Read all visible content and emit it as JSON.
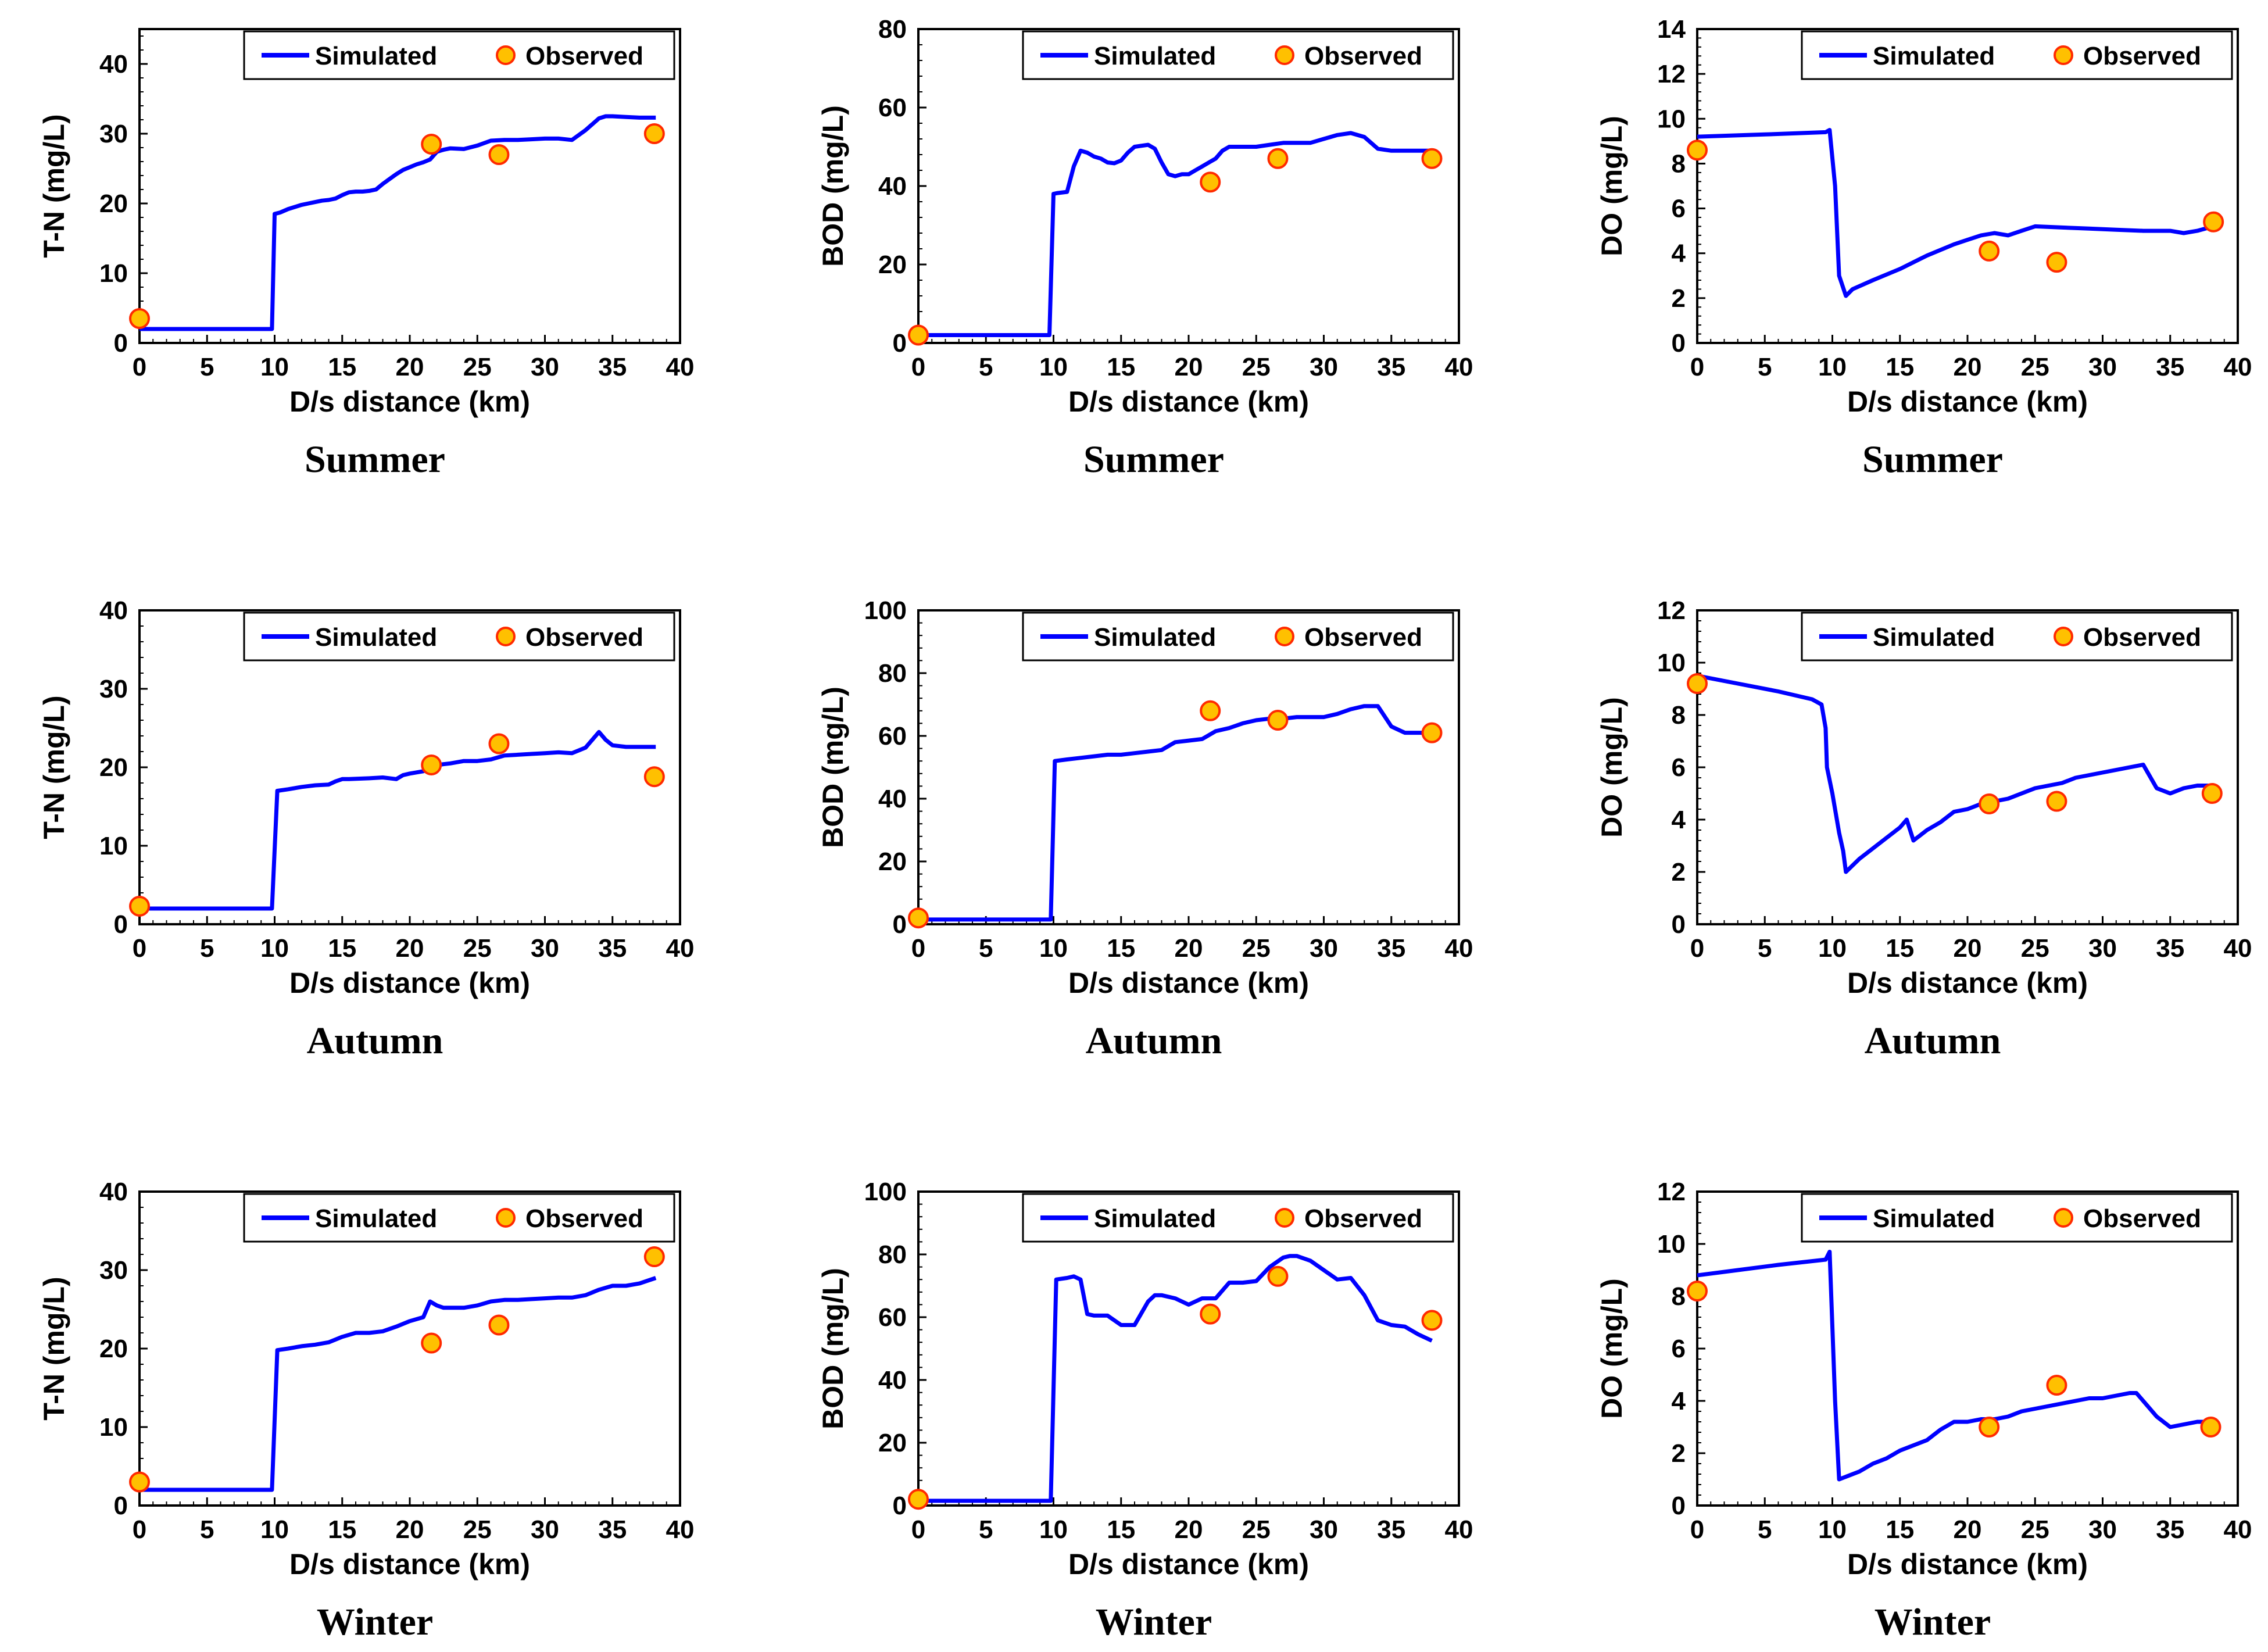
{
  "colors": {
    "simulated": "#0000ff",
    "observed_fill": "#ffc000",
    "observed_edge": "#ff2a00",
    "axis": "#000000"
  },
  "legend": {
    "simulated": "Simulated",
    "observed": "Observed",
    "placement": "top-right"
  },
  "chart_data": [
    {
      "type": "line",
      "season": "Summer",
      "ylabel": "T-N (mg/L)",
      "xlabel": "D/s distance (km)",
      "xlim": [
        0,
        40
      ],
      "ylim": [
        0,
        45
      ],
      "yticks": [
        0,
        10,
        20,
        30,
        40
      ],
      "xticks": [
        0,
        5,
        10,
        15,
        20,
        25,
        30,
        35,
        40
      ],
      "simulated": {
        "x": [
          0,
          9.8,
          10,
          10.4,
          11,
          11.5,
          12,
          12.5,
          13,
          13.5,
          14,
          14.5,
          15,
          15.5,
          16,
          16.5,
          17,
          17.5,
          18,
          18.5,
          19,
          19.5,
          20,
          20.5,
          21,
          21.5,
          22,
          22.5,
          23,
          24,
          25,
          26,
          27,
          28,
          29,
          30,
          31,
          32,
          33,
          34,
          34.5,
          35,
          36,
          37,
          38.2
        ],
        "y": [
          2,
          2,
          18.5,
          18.7,
          19.2,
          19.5,
          19.8,
          20,
          20.2,
          20.4,
          20.5,
          20.7,
          21.2,
          21.6,
          21.7,
          21.7,
          21.8,
          22,
          22.8,
          23.5,
          24.2,
          24.8,
          25.2,
          25.6,
          25.9,
          26.3,
          27.4,
          27.7,
          27.9,
          27.8,
          28.3,
          29,
          29.1,
          29.1,
          29.2,
          29.3,
          29.3,
          29.1,
          30.5,
          32.2,
          32.5,
          32.5,
          32.4,
          32.3,
          32.3
        ]
      },
      "observed": {
        "x": [
          0,
          21.6,
          26.6,
          38.1
        ],
        "y": [
          3.5,
          28.5,
          27,
          30
        ]
      }
    },
    {
      "type": "line",
      "season": "Summer",
      "ylabel": "BOD (mg/L)",
      "xlabel": "D/s distance (km)",
      "xlim": [
        0,
        40
      ],
      "ylim": [
        0,
        80
      ],
      "yticks": [
        0,
        20,
        40,
        60,
        80
      ],
      "xticks": [
        0,
        5,
        10,
        15,
        20,
        25,
        30,
        35,
        40
      ],
      "simulated": {
        "x": [
          0,
          9.7,
          10,
          10.3,
          11,
          11.5,
          12,
          12.5,
          13,
          13.5,
          14,
          14.5,
          15,
          15.5,
          16,
          17,
          17.5,
          18,
          18.5,
          19,
          19.5,
          20,
          20.5,
          21,
          21.5,
          22,
          22.5,
          23,
          24,
          25,
          26,
          27,
          28,
          29,
          30,
          31,
          32,
          33,
          34,
          35,
          36,
          37,
          38
        ],
        "y": [
          2,
          2,
          38,
          38.2,
          38.5,
          45,
          49,
          48.5,
          47.5,
          47,
          46,
          45.8,
          46.5,
          48.5,
          50,
          50.5,
          49.5,
          46,
          43,
          42.5,
          43,
          43,
          44,
          45,
          46,
          47,
          49,
          50,
          50,
          50,
          50.5,
          51,
          51,
          51,
          52,
          53,
          53.5,
          52.5,
          49.5,
          49,
          49,
          49,
          49
        ]
      },
      "observed": {
        "x": [
          0,
          21.6,
          26.6,
          38
        ],
        "y": [
          2,
          41,
          47,
          47
        ]
      }
    },
    {
      "type": "line",
      "season": "Summer",
      "ylabel": "DO (mg/L)",
      "xlabel": "D/s distance (km)",
      "xlim": [
        0,
        40
      ],
      "ylim": [
        0,
        14
      ],
      "yticks": [
        0,
        2,
        4,
        6,
        8,
        10,
        12,
        14
      ],
      "xticks": [
        0,
        5,
        10,
        15,
        20,
        25,
        30,
        35,
        40
      ],
      "simulated": {
        "x": [
          0,
          5,
          9.5,
          9.8,
          10.2,
          10.5,
          11,
          11.5,
          13,
          15,
          17,
          19,
          20,
          21,
          22,
          23,
          24,
          25,
          27,
          29,
          31,
          33,
          35,
          36,
          37,
          38.2
        ],
        "y": [
          9.2,
          9.3,
          9.4,
          9.5,
          7,
          3,
          2.1,
          2.4,
          2.8,
          3.3,
          3.9,
          4.4,
          4.6,
          4.8,
          4.9,
          4.8,
          5,
          5.2,
          5.15,
          5.1,
          5.05,
          5,
          5,
          4.9,
          5,
          5.2
        ]
      },
      "observed": {
        "x": [
          0,
          21.6,
          26.6,
          38.2
        ],
        "y": [
          8.6,
          4.1,
          3.6,
          5.4
        ]
      }
    },
    {
      "type": "line",
      "season": "Autumn",
      "ylabel": "T-N (mg/L)",
      "xlabel": "D/s distance (km)",
      "xlim": [
        0,
        40
      ],
      "ylim": [
        0,
        40
      ],
      "yticks": [
        0,
        10,
        20,
        30,
        40
      ],
      "xticks": [
        0,
        5,
        10,
        15,
        20,
        25,
        30,
        35,
        40
      ],
      "simulated": {
        "x": [
          0,
          9.5,
          9.8,
          10.2,
          11,
          12,
          13,
          14,
          14.5,
          15,
          15.5,
          17,
          18,
          19,
          19.5,
          20,
          21,
          22,
          23,
          24,
          25,
          26,
          27,
          28,
          29,
          30,
          31,
          32,
          33,
          33.5,
          34,
          34.5,
          35,
          36,
          37,
          38.2
        ],
        "y": [
          2,
          2,
          2,
          17,
          17.2,
          17.5,
          17.7,
          17.8,
          18.2,
          18.5,
          18.5,
          18.6,
          18.7,
          18.5,
          19,
          19.2,
          19.5,
          20.3,
          20.5,
          20.8,
          20.8,
          21,
          21.5,
          21.6,
          21.7,
          21.8,
          21.9,
          21.8,
          22.5,
          23.5,
          24.5,
          23.5,
          22.8,
          22.6,
          22.6,
          22.6
        ]
      },
      "observed": {
        "x": [
          0,
          21.6,
          26.6,
          38.1
        ],
        "y": [
          2.3,
          20.3,
          23,
          18.8
        ]
      }
    },
    {
      "type": "line",
      "season": "Autumn",
      "ylabel": "BOD (mg/L)",
      "xlabel": "D/s distance (km)",
      "xlim": [
        0,
        40
      ],
      "ylim": [
        0,
        100
      ],
      "yticks": [
        0,
        20,
        40,
        60,
        80,
        100
      ],
      "xticks": [
        0,
        5,
        10,
        15,
        20,
        25,
        30,
        35,
        40
      ],
      "simulated": {
        "x": [
          0,
          9.8,
          10.1,
          11,
          12,
          13,
          14,
          15,
          16,
          17,
          18,
          19,
          20,
          21,
          22,
          23,
          24,
          25,
          26,
          27,
          28,
          29,
          30,
          31,
          32,
          33,
          34,
          35,
          36,
          37,
          38
        ],
        "y": [
          1.5,
          1.5,
          52,
          52.5,
          53,
          53.5,
          54,
          54,
          54.5,
          55,
          55.5,
          58,
          58.5,
          59,
          61.5,
          62.5,
          64,
          65,
          65.5,
          65.5,
          66,
          66,
          66,
          67,
          68.5,
          69.5,
          69.5,
          63,
          61,
          61,
          61
        ]
      },
      "observed": {
        "x": [
          0,
          21.6,
          26.6,
          38
        ],
        "y": [
          2,
          68,
          65,
          61
        ]
      }
    },
    {
      "type": "line",
      "season": "Autumn",
      "ylabel": "DO (mg/L)",
      "xlabel": "D/s distance (km)",
      "xlim": [
        0,
        40
      ],
      "ylim": [
        0,
        12
      ],
      "yticks": [
        0,
        2,
        4,
        6,
        8,
        10,
        12
      ],
      "xticks": [
        0,
        5,
        10,
        15,
        20,
        25,
        30,
        35,
        40
      ],
      "simulated": {
        "x": [
          0,
          3,
          6,
          8.5,
          9.2,
          9.5,
          9.6,
          10,
          10.5,
          10.8,
          11,
          12,
          13,
          14,
          15,
          15.5,
          16,
          17,
          18,
          19,
          20,
          21,
          22,
          23,
          24,
          25,
          26,
          27,
          28,
          29,
          30,
          31,
          32,
          33,
          34,
          35,
          36,
          37,
          38
        ],
        "y": [
          9.5,
          9.2,
          8.9,
          8.6,
          8.4,
          7.5,
          6,
          5,
          3.5,
          2.8,
          2,
          2.5,
          2.9,
          3.3,
          3.7,
          4,
          3.2,
          3.6,
          3.9,
          4.3,
          4.4,
          4.6,
          4.7,
          4.8,
          5,
          5.2,
          5.3,
          5.4,
          5.6,
          5.7,
          5.8,
          5.9,
          6,
          6.1,
          5.2,
          5,
          5.2,
          5.3,
          5.3
        ]
      },
      "observed": {
        "x": [
          0,
          21.6,
          26.6,
          38.1
        ],
        "y": [
          9.2,
          4.6,
          4.7,
          5
        ]
      }
    },
    {
      "type": "line",
      "season": "Winter",
      "ylabel": "T-N (mg/L)",
      "xlabel": "D/s distance (km)",
      "xlim": [
        0,
        40
      ],
      "ylim": [
        0,
        40
      ],
      "yticks": [
        0,
        10,
        20,
        30,
        40
      ],
      "xticks": [
        0,
        5,
        10,
        15,
        20,
        25,
        30,
        35,
        40
      ],
      "simulated": {
        "x": [
          0,
          9.5,
          9.8,
          10.2,
          11,
          12,
          13,
          14,
          15,
          16,
          17,
          18,
          19,
          20,
          21,
          21.5,
          22,
          22.5,
          23,
          24,
          25,
          26,
          27,
          28,
          29,
          30,
          31,
          32,
          33,
          34,
          35,
          36,
          37,
          38.2
        ],
        "y": [
          2,
          2,
          2,
          19.8,
          20,
          20.3,
          20.5,
          20.8,
          21.5,
          22,
          22,
          22.2,
          22.8,
          23.5,
          24,
          26,
          25.5,
          25.2,
          25.2,
          25.2,
          25.5,
          26,
          26.2,
          26.2,
          26.3,
          26.4,
          26.5,
          26.5,
          26.8,
          27.5,
          28,
          28,
          28.3,
          29
        ]
      },
      "observed": {
        "x": [
          0,
          21.6,
          26.6,
          38.1
        ],
        "y": [
          3,
          20.7,
          23,
          31.7
        ]
      }
    },
    {
      "type": "line",
      "season": "Winter",
      "ylabel": "BOD (mg/L)",
      "xlabel": "D/s distance (km)",
      "xlim": [
        0,
        40
      ],
      "ylim": [
        0,
        100
      ],
      "yticks": [
        0,
        20,
        40,
        60,
        80,
        100
      ],
      "xticks": [
        0,
        5,
        10,
        15,
        20,
        25,
        30,
        35,
        40
      ],
      "simulated": {
        "x": [
          0,
          9.8,
          10.2,
          11,
          11.5,
          12,
          12.5,
          13,
          14,
          15,
          16,
          17,
          17.5,
          18,
          19,
          20,
          21,
          22,
          23,
          24,
          25,
          26,
          27,
          27.5,
          28,
          29,
          30,
          31,
          32,
          33,
          34,
          35,
          36,
          37,
          38
        ],
        "y": [
          1.5,
          1.5,
          72,
          72.5,
          73,
          72,
          61,
          60.5,
          60.5,
          57.5,
          57.5,
          65,
          67,
          67,
          66,
          64,
          66,
          66,
          71,
          71,
          71.5,
          76,
          79,
          79.5,
          79.5,
          78,
          75,
          72,
          72.5,
          67,
          59,
          57.5,
          57,
          54.5,
          52.5
        ]
      },
      "observed": {
        "x": [
          0,
          21.6,
          26.6,
          38
        ],
        "y": [
          2,
          61,
          73,
          59
        ]
      }
    },
    {
      "type": "line",
      "season": "Winter",
      "ylabel": "DO (mg/L)",
      "xlabel": "D/s distance (km)",
      "xlim": [
        0,
        40
      ],
      "ylim": [
        0,
        12
      ],
      "yticks": [
        0,
        2,
        4,
        6,
        8,
        10,
        12
      ],
      "xticks": [
        0,
        5,
        10,
        15,
        20,
        25,
        30,
        35,
        40
      ],
      "simulated": {
        "x": [
          0,
          3,
          6,
          9.5,
          9.8,
          10.2,
          10.5,
          11,
          12,
          13,
          14,
          15,
          16,
          17,
          18,
          19,
          20,
          21,
          22,
          23,
          24,
          25,
          26,
          27,
          28,
          29,
          30,
          31,
          32,
          32.5,
          33,
          34,
          35,
          36,
          37,
          38
        ],
        "y": [
          8.8,
          9,
          9.2,
          9.4,
          9.7,
          4,
          1,
          1.1,
          1.3,
          1.6,
          1.8,
          2.1,
          2.3,
          2.5,
          2.9,
          3.2,
          3.2,
          3.3,
          3.3,
          3.4,
          3.6,
          3.7,
          3.8,
          3.9,
          4,
          4.1,
          4.1,
          4.2,
          4.3,
          4.3,
          4,
          3.4,
          3,
          3.1,
          3.2,
          3.2
        ]
      },
      "observed": {
        "x": [
          0,
          21.6,
          26.6,
          38
        ],
        "y": [
          8.2,
          3,
          4.6,
          3
        ]
      }
    }
  ]
}
